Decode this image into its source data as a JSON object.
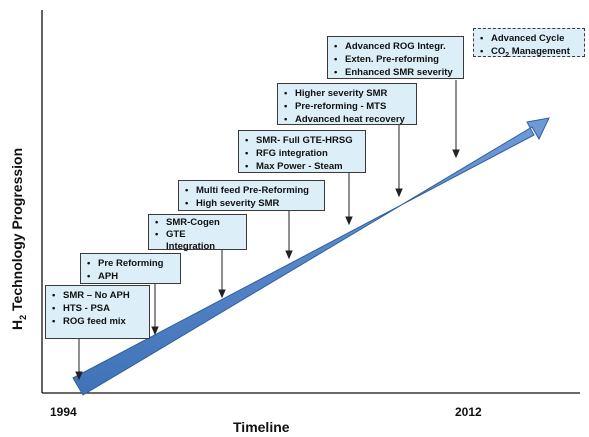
{
  "axes": {
    "ylabel_main": "H",
    "ylabel_sub": "2",
    "ylabel_rest": " Technology Progression",
    "xlabel": "Timeline",
    "x_start": "1994",
    "x_end": "2012"
  },
  "boxes": [
    {
      "id": "box1",
      "items": [
        "SMR – No APH",
        "HTS - PSA",
        "ROG feed mix"
      ]
    },
    {
      "id": "box2",
      "items": [
        "Pre Reforming",
        "APH"
      ]
    },
    {
      "id": "box3",
      "items": [
        "SMR-Cogen",
        "GTE",
        "Integration"
      ]
    },
    {
      "id": "box4",
      "items": [
        "Multi feed  Pre-Reforming",
        "High severity SMR"
      ]
    },
    {
      "id": "box5",
      "items": [
        "SMR- Full GTE-HRSG",
        "RFG integration",
        "Max Power - Steam"
      ]
    },
    {
      "id": "box6",
      "items": [
        "Higher severity SMR",
        "Pre-reforming  - MTS",
        "Advanced heat recovery"
      ]
    },
    {
      "id": "box7",
      "items": [
        "Advanced ROG  Integr.",
        "Exten. Pre-reforming",
        "Enhanced  SMR severity"
      ]
    },
    {
      "id": "box8",
      "items": [
        "Advanced  Cycle",
        "CO2 Management"
      ]
    }
  ],
  "bullet": "•",
  "colors": {
    "arrow_fill": "#4a7ec6",
    "arrow_edge": "#2f5f9e",
    "box_fill": "#dceef8",
    "box_border": "#3a3a3a",
    "axis": "#111111"
  }
}
